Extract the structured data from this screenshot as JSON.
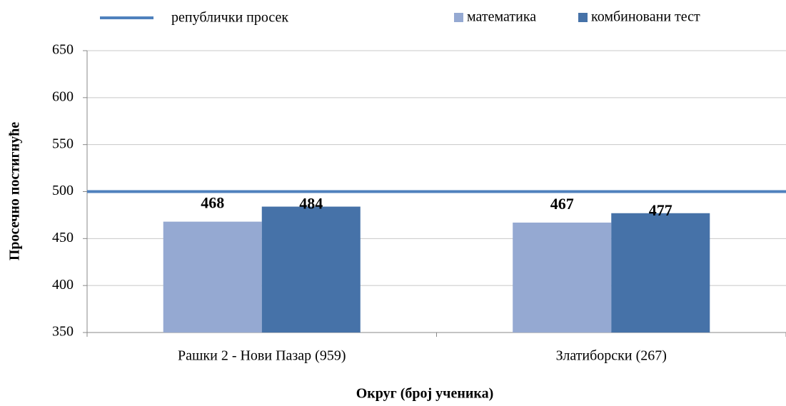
{
  "chart_data": {
    "type": "bar",
    "categories": [
      "Рашки 2 - Нови Пазар (959)",
      "Златиборски (267)"
    ],
    "series": [
      {
        "name": "математика",
        "color": "#95a9d2",
        "values": [
          468,
          467
        ]
      },
      {
        "name": "комбиновани тест",
        "color": "#4672a8",
        "values": [
          484,
          477
        ]
      }
    ],
    "reference_line": {
      "name": "републички просек",
      "value": 500,
      "color": "#4f81bd"
    },
    "x_label": "Округ (број ученика)",
    "y_label": "Просечно постигнуће",
    "ylim": [
      350,
      650
    ],
    "yticks": [
      350,
      400,
      450,
      500,
      550,
      600,
      650
    ],
    "grid": true
  }
}
